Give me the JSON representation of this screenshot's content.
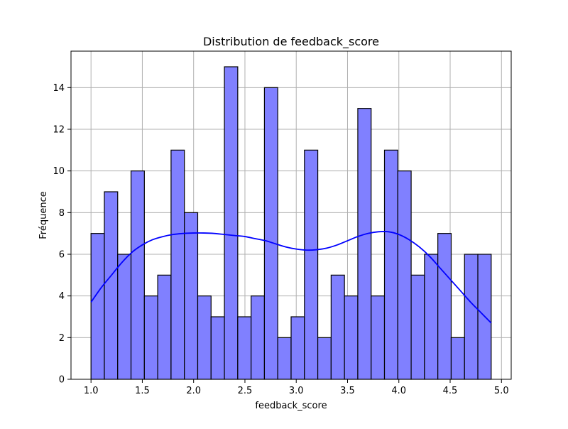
{
  "chart_data": {
    "type": "bar",
    "title": "Distribution de feedback_score",
    "xlabel": "feedback_score",
    "ylabel": "Fréquence",
    "xlim": [
      0.805,
      5.095
    ],
    "ylim": [
      0,
      15.75
    ],
    "x_ticks": [
      1.0,
      1.5,
      2.0,
      2.5,
      3.0,
      3.5,
      4.0,
      4.5,
      5.0
    ],
    "x_tick_labels": [
      "1.0",
      "1.5",
      "2.0",
      "2.5",
      "3.0",
      "3.5",
      "4.0",
      "4.5",
      "5.0"
    ],
    "y_ticks": [
      0,
      2,
      4,
      6,
      8,
      10,
      12,
      14
    ],
    "y_tick_labels": [
      "0",
      "2",
      "4",
      "6",
      "8",
      "10",
      "12",
      "14"
    ],
    "grid": true,
    "bins": {
      "start": 1.0,
      "width": 0.13,
      "counts": [
        7,
        9,
        6,
        10,
        4,
        5,
        11,
        8,
        4,
        3,
        15,
        3,
        4,
        14,
        2,
        3,
        11,
        2,
        5,
        4,
        13,
        4,
        11,
        10,
        5,
        6,
        7,
        2,
        6,
        6
      ]
    },
    "kde": {
      "x": [
        1.0,
        1.1,
        1.2,
        1.3,
        1.4,
        1.5,
        1.6,
        1.7,
        1.8,
        1.9,
        2.0,
        2.1,
        2.2,
        2.3,
        2.4,
        2.5,
        2.6,
        2.7,
        2.8,
        2.9,
        3.0,
        3.1,
        3.2,
        3.3,
        3.4,
        3.5,
        3.6,
        3.7,
        3.8,
        3.9,
        4.0,
        4.1,
        4.2,
        4.3,
        4.4,
        4.5,
        4.6,
        4.7,
        4.8,
        4.9
      ],
      "y": [
        3.7,
        4.4,
        5.0,
        5.6,
        6.1,
        6.45,
        6.7,
        6.85,
        6.95,
        7.0,
        7.02,
        7.02,
        7.0,
        6.95,
        6.9,
        6.85,
        6.75,
        6.65,
        6.5,
        6.35,
        6.25,
        6.2,
        6.22,
        6.3,
        6.45,
        6.65,
        6.85,
        7.0,
        7.08,
        7.08,
        6.95,
        6.7,
        6.35,
        5.9,
        5.35,
        4.8,
        4.25,
        3.7,
        3.2,
        2.7
      ]
    },
    "colors": {
      "bar_fill": "#8080ff",
      "bar_edge": "#000000",
      "kde_line": "#0000ff",
      "grid": "#b0b0b0"
    }
  }
}
